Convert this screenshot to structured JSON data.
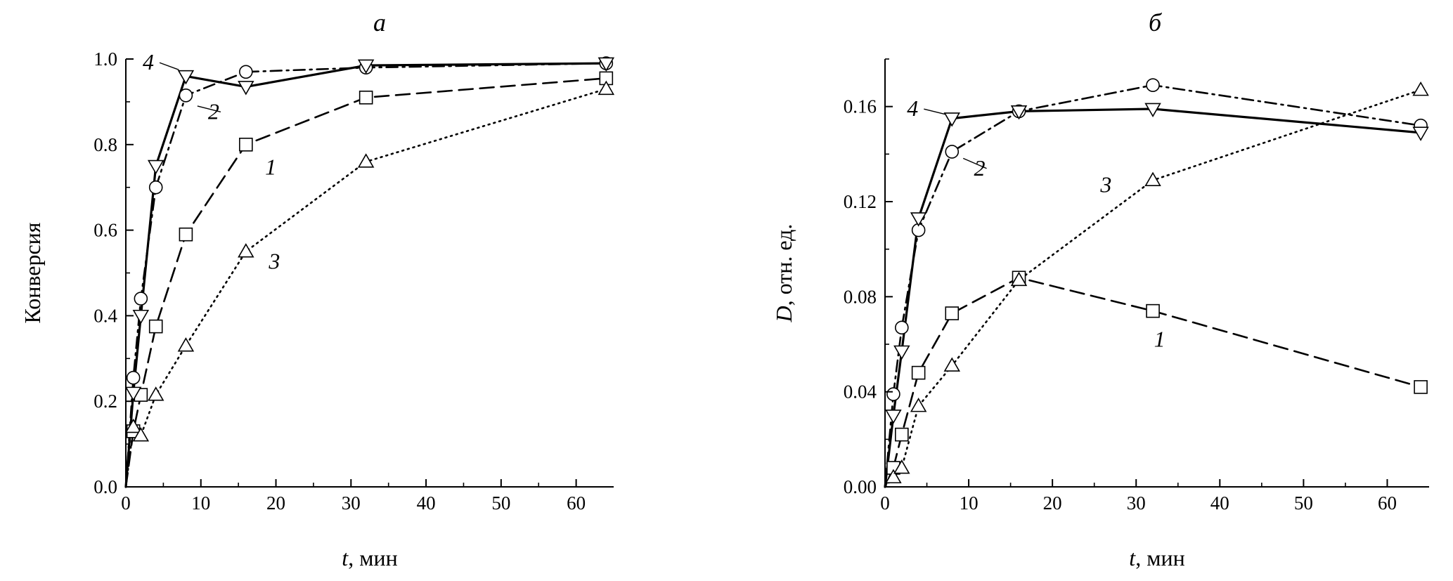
{
  "chart_data": [
    {
      "type": "line",
      "title": "а",
      "xlabel_italic": "t",
      "xlabel_rest": ", мин",
      "ylabel_italic": "",
      "ylabel_rest": "Конверсия",
      "xlim": [
        0,
        65
      ],
      "ylim": [
        0,
        1.0
      ],
      "xticks": [
        0,
        10,
        20,
        30,
        40,
        50,
        60
      ],
      "yticks": [
        0.0,
        0.2,
        0.4,
        0.6,
        0.8,
        1.0
      ],
      "xtick_labels": [
        "0",
        "10",
        "20",
        "30",
        "40",
        "50",
        "60"
      ],
      "ytick_labels": [
        "0.0",
        "0.2",
        "0.4",
        "0.6",
        "0.8",
        "1.0"
      ],
      "grid": false,
      "series": [
        {
          "name": "1",
          "marker": "square",
          "line": "dashed",
          "x": [
            0,
            1,
            2,
            4,
            8,
            16,
            32,
            64
          ],
          "y": [
            0,
            0.13,
            0.215,
            0.375,
            0.59,
            0.8,
            0.91,
            0.955
          ]
        },
        {
          "name": "2",
          "marker": "circle",
          "line": "dashdot",
          "x": [
            0,
            1,
            2,
            4,
            8,
            16,
            32,
            64
          ],
          "y": [
            0,
            0.255,
            0.44,
            0.7,
            0.915,
            0.97,
            0.98,
            0.99
          ]
        },
        {
          "name": "3",
          "marker": "triangle-up",
          "line": "dotted",
          "x": [
            0,
            1,
            2,
            4,
            8,
            16,
            32,
            64
          ],
          "y": [
            0,
            0.14,
            0.12,
            0.215,
            0.33,
            0.55,
            0.76,
            0.93
          ]
        },
        {
          "name": "4",
          "marker": "triangle-down",
          "line": "solid",
          "x": [
            0,
            1,
            2,
            4,
            8,
            16,
            32,
            64
          ],
          "y": [
            0,
            0.22,
            0.4,
            0.75,
            0.96,
            0.935,
            0.985,
            0.99
          ]
        }
      ],
      "annotations": [
        {
          "text": "4",
          "x": 3.0,
          "y": 0.975,
          "leader_to": [
            8,
            0.965
          ]
        },
        {
          "text": "2",
          "x": 11.7,
          "y": 0.86,
          "leader_to": [
            8.6,
            0.9
          ]
        },
        {
          "text": "1",
          "x": 19.3,
          "y": 0.73
        },
        {
          "text": "3",
          "x": 19.8,
          "y": 0.51
        }
      ]
    },
    {
      "type": "line",
      "title": "б",
      "xlabel_italic": "t",
      "xlabel_rest": ", мин",
      "ylabel_italic": "D",
      "ylabel_rest": ", отн. ед.",
      "xlim": [
        0,
        65
      ],
      "ylim": [
        0,
        0.18
      ],
      "xticks": [
        0,
        10,
        20,
        30,
        40,
        50,
        60
      ],
      "yticks": [
        0,
        0.04,
        0.08,
        0.12,
        0.16
      ],
      "xtick_labels": [
        "0",
        "10",
        "20",
        "30",
        "40",
        "50",
        "60"
      ],
      "ytick_labels": [
        "0.00",
        "0.04",
        "0.08",
        "0.12",
        "0.16"
      ],
      "grid": false,
      "series": [
        {
          "name": "1",
          "marker": "square",
          "line": "dashed",
          "x": [
            0,
            1,
            2,
            4,
            8,
            16,
            32,
            64
          ],
          "y": [
            0,
            0.008,
            0.022,
            0.048,
            0.073,
            0.088,
            0.074,
            0.042
          ]
        },
        {
          "name": "2",
          "marker": "circle",
          "line": "dashdot",
          "x": [
            0,
            1,
            2,
            4,
            8,
            16,
            32,
            64
          ],
          "y": [
            0,
            0.039,
            0.067,
            0.108,
            0.141,
            0.158,
            0.169,
            0.152
          ]
        },
        {
          "name": "3",
          "marker": "triangle-up",
          "line": "dotted",
          "x": [
            0,
            1,
            2,
            4,
            8,
            16,
            32,
            64
          ],
          "y": [
            0,
            0.004,
            0.008,
            0.034,
            0.051,
            0.087,
            0.129,
            0.167
          ]
        },
        {
          "name": "4",
          "marker": "triangle-down",
          "line": "solid",
          "x": [
            0,
            1,
            2,
            4,
            8,
            16,
            32,
            64
          ],
          "y": [
            0,
            0.03,
            0.057,
            0.113,
            0.155,
            0.158,
            0.159,
            0.149
          ]
        }
      ],
      "annotations": [
        {
          "text": "4",
          "x": 3.3,
          "y": 0.156,
          "leader_to": [
            8,
            0.155
          ]
        },
        {
          "text": "2",
          "x": 11.3,
          "y": 0.131,
          "leader_to": [
            8.5,
            0.14
          ]
        },
        {
          "text": "3",
          "x": 26.4,
          "y": 0.124
        },
        {
          "text": "1",
          "x": 32.8,
          "y": 0.059
        }
      ]
    }
  ]
}
